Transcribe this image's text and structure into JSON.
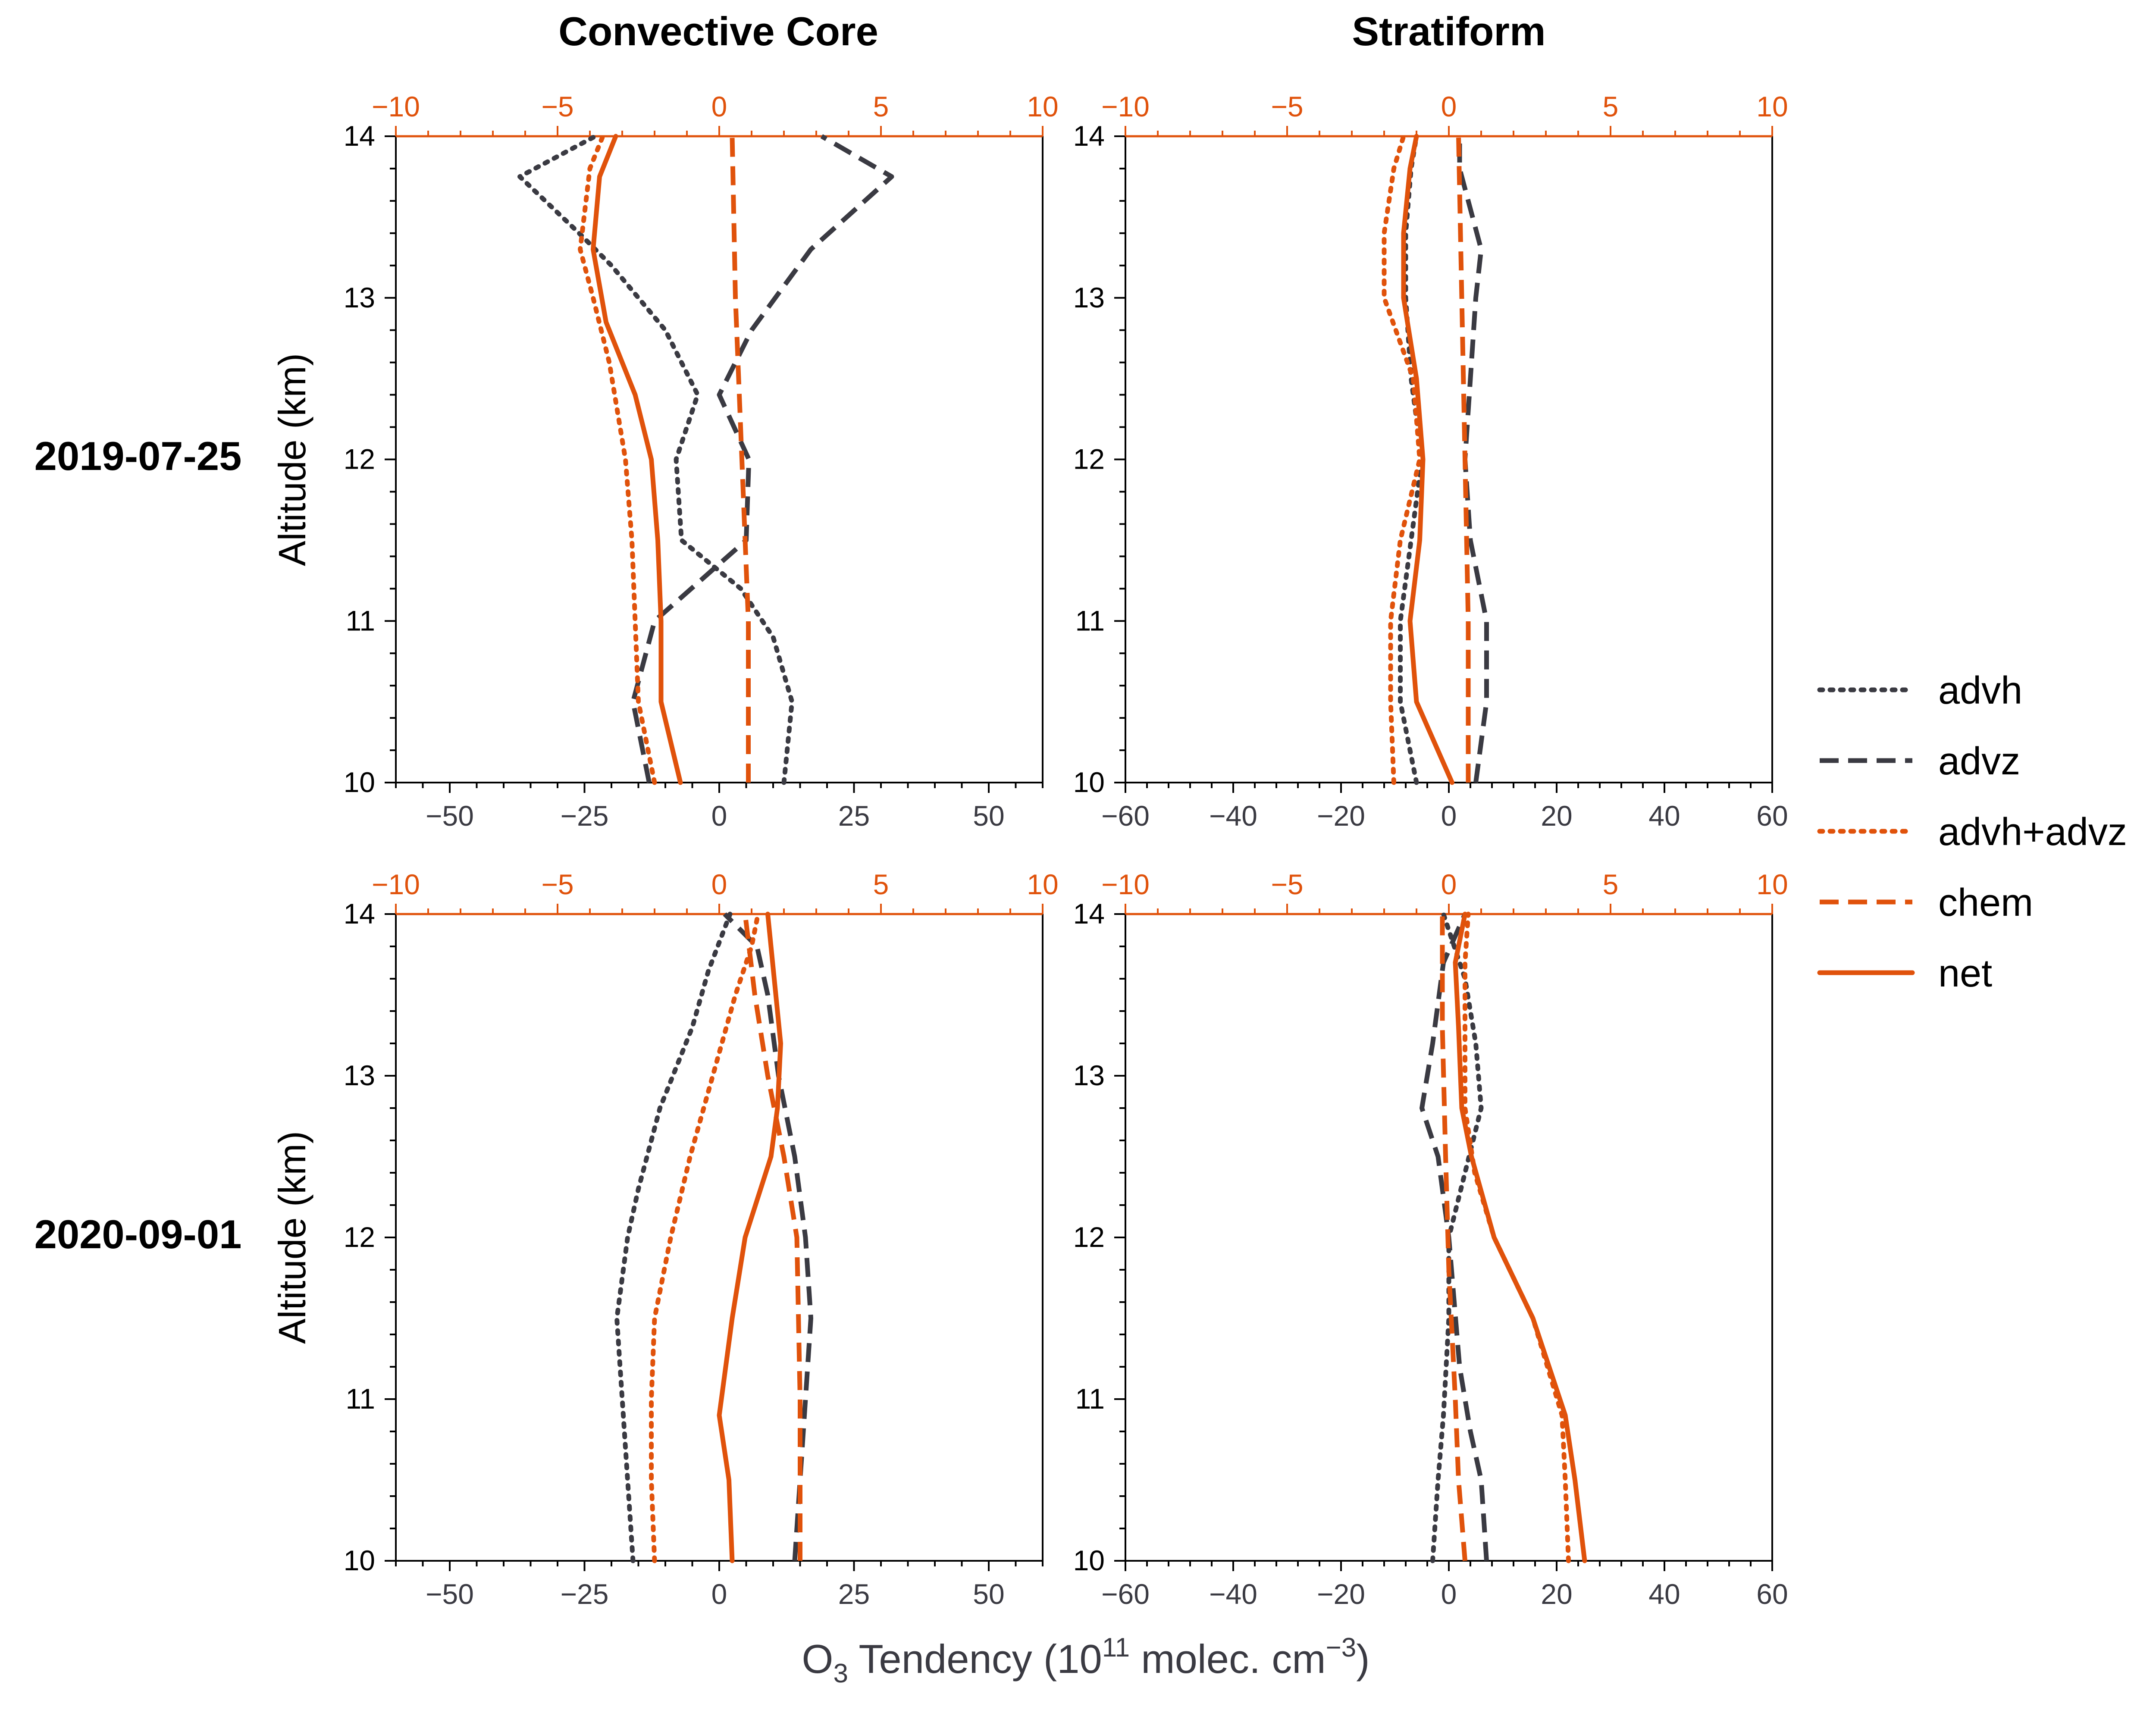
{
  "figure": {
    "column_titles": [
      "Convective Core",
      "Stratiform"
    ],
    "row_labels": [
      "2019-07-25",
      "2020-09-01"
    ],
    "y_label": "Altitude (km)",
    "x_label_prefix": "O",
    "x_label_sub": "3",
    "x_label_mid": " Tendency (10",
    "x_label_sup1": "11",
    "x_label_mid2": " molec. cm",
    "x_label_sup2": "−3",
    "x_label_end": ")",
    "colors": {
      "dark": "#3a3a42",
      "orange": "#e0520b"
    }
  },
  "legend": [
    {
      "label": "advh",
      "color": "#3a3a42",
      "style": "dotted"
    },
    {
      "label": "advz",
      "color": "#3a3a42",
      "style": "dashed"
    },
    {
      "label": "advh+advz",
      "color": "#e0520b",
      "style": "dotted"
    },
    {
      "label": "chem",
      "color": "#e0520b",
      "style": "dashed"
    },
    {
      "label": "net",
      "color": "#e0520b",
      "style": "solid"
    }
  ],
  "chart_data": [
    {
      "type": "line",
      "panel": "Convective Core / 2019-07-25",
      "ylim": [
        10,
        14
      ],
      "yticks": [
        10,
        11,
        12,
        13,
        14
      ],
      "bottom_xlim": [
        -60,
        60
      ],
      "bottom_xticks": [
        -50,
        -25,
        0,
        25,
        50
      ],
      "top_xlim": [
        -10,
        10
      ],
      "top_xticks": [
        -10,
        -5,
        0,
        5,
        10
      ],
      "series": [
        {
          "name": "advh",
          "axis": "bottom",
          "points": [
            [
              12,
              10
            ],
            [
              13.5,
              10.5
            ],
            [
              10,
              10.9
            ],
            [
              4,
              11.2
            ],
            [
              -7,
              11.5
            ],
            [
              -8,
              12
            ],
            [
              -4,
              12.4
            ],
            [
              -10,
              12.8
            ],
            [
              -20,
              13.2
            ],
            [
              -26,
              13.4
            ],
            [
              -37,
              13.75
            ],
            [
              -23,
              14
            ]
          ]
        },
        {
          "name": "advz",
          "axis": "bottom",
          "points": [
            [
              -13,
              10
            ],
            [
              -16,
              10.5
            ],
            [
              -12,
              11
            ],
            [
              5,
              11.5
            ],
            [
              5.5,
              12
            ],
            [
              0,
              12.4
            ],
            [
              6,
              12.8
            ],
            [
              17,
              13.3
            ],
            [
              32,
              13.75
            ],
            [
              19,
              14
            ]
          ]
        },
        {
          "name": "advh+advz",
          "axis": "top",
          "points": [
            [
              -2.0,
              10
            ],
            [
              -2.5,
              10.5
            ],
            [
              -2.6,
              11
            ],
            [
              -2.7,
              11.5
            ],
            [
              -2.9,
              12
            ],
            [
              -3.4,
              12.6
            ],
            [
              -3.9,
              13
            ],
            [
              -4.3,
              13.3
            ],
            [
              -4.0,
              13.8
            ],
            [
              -3.6,
              14
            ]
          ]
        },
        {
          "name": "chem",
          "axis": "top",
          "points": [
            [
              0.9,
              10
            ],
            [
              0.9,
              11
            ],
            [
              0.7,
              12
            ],
            [
              0.5,
              13
            ],
            [
              0.4,
              14
            ]
          ]
        },
        {
          "name": "net",
          "axis": "top",
          "points": [
            [
              -1.2,
              10
            ],
            [
              -1.8,
              10.5
            ],
            [
              -1.8,
              11
            ],
            [
              -1.9,
              11.5
            ],
            [
              -2.1,
              12
            ],
            [
              -2.6,
              12.4
            ],
            [
              -3.5,
              12.85
            ],
            [
              -3.9,
              13.3
            ],
            [
              -3.7,
              13.75
            ],
            [
              -3.2,
              14
            ]
          ]
        }
      ]
    },
    {
      "type": "line",
      "panel": "Stratiform / 2019-07-25",
      "ylim": [
        10,
        14
      ],
      "yticks": [
        10,
        11,
        12,
        13,
        14
      ],
      "bottom_xlim": [
        -60,
        60
      ],
      "bottom_xticks": [
        -60,
        -40,
        -20,
        0,
        20,
        40,
        60
      ],
      "top_xlim": [
        -10,
        10
      ],
      "top_xticks": [
        -10,
        -5,
        0,
        5,
        10
      ],
      "series": [
        {
          "name": "advh",
          "axis": "bottom",
          "points": [
            [
              -6,
              10
            ],
            [
              -9,
              10.5
            ],
            [
              -9,
              11
            ],
            [
              -7,
              11.5
            ],
            [
              -5,
              12
            ],
            [
              -7,
              12.5
            ],
            [
              -8,
              13
            ],
            [
              -8,
              13.4
            ],
            [
              -7,
              13.8
            ],
            [
              -6,
              14
            ]
          ]
        },
        {
          "name": "advz",
          "axis": "bottom",
          "points": [
            [
              5,
              10
            ],
            [
              7,
              10.5
            ],
            [
              7,
              11
            ],
            [
              4,
              11.5
            ],
            [
              3,
              12
            ],
            [
              4,
              12.5
            ],
            [
              5,
              13
            ],
            [
              6,
              13.3
            ],
            [
              2,
              13.8
            ],
            [
              2,
              14
            ]
          ]
        },
        {
          "name": "advh+advz",
          "axis": "top",
          "points": [
            [
              -1.7,
              10
            ],
            [
              -1.8,
              10.5
            ],
            [
              -1.8,
              11
            ],
            [
              -1.5,
              11.5
            ],
            [
              -0.9,
              12
            ],
            [
              -1.1,
              12.5
            ],
            [
              -2.0,
              13
            ],
            [
              -2.0,
              13.4
            ],
            [
              -1.7,
              13.8
            ],
            [
              -1.4,
              14
            ]
          ]
        },
        {
          "name": "chem",
          "axis": "top",
          "points": [
            [
              0.6,
              10
            ],
            [
              0.6,
              11
            ],
            [
              0.5,
              12
            ],
            [
              0.4,
              13
            ],
            [
              0.3,
              14
            ]
          ]
        },
        {
          "name": "net",
          "axis": "top",
          "points": [
            [
              0.1,
              10
            ],
            [
              -1.0,
              10.5
            ],
            [
              -1.2,
              11
            ],
            [
              -0.9,
              11.5
            ],
            [
              -0.8,
              12
            ],
            [
              -1.0,
              12.5
            ],
            [
              -1.4,
              13
            ],
            [
              -1.4,
              13.4
            ],
            [
              -1.2,
              13.8
            ],
            [
              -1.0,
              14
            ]
          ]
        }
      ]
    },
    {
      "type": "line",
      "panel": "Convective Core / 2020-09-01",
      "ylim": [
        10,
        14
      ],
      "yticks": [
        10,
        11,
        12,
        13,
        14
      ],
      "bottom_xlim": [
        -60,
        60
      ],
      "bottom_xticks": [
        -50,
        -25,
        0,
        25,
        50
      ],
      "top_xlim": [
        -10,
        10
      ],
      "top_xticks": [
        -10,
        -5,
        0,
        5,
        10
      ],
      "series": [
        {
          "name": "advh",
          "axis": "bottom",
          "points": [
            [
              -16,
              10
            ],
            [
              -17,
              10.5
            ],
            [
              -18,
              11
            ],
            [
              -19,
              11.5
            ],
            [
              -17,
              12
            ],
            [
              -15,
              12.3
            ],
            [
              -11,
              12.8
            ],
            [
              -5,
              13.3
            ],
            [
              -2,
              13.65
            ],
            [
              2,
              14
            ]
          ]
        },
        {
          "name": "advz",
          "axis": "bottom",
          "points": [
            [
              14,
              10
            ],
            [
              15,
              10.5
            ],
            [
              16,
              11
            ],
            [
              17,
              11.5
            ],
            [
              16,
              12
            ],
            [
              14,
              12.5
            ],
            [
              11,
              13
            ],
            [
              9,
              13.5
            ],
            [
              7,
              13.8
            ],
            [
              1,
              14
            ]
          ]
        },
        {
          "name": "advh+advz",
          "axis": "top",
          "points": [
            [
              -2.0,
              10
            ],
            [
              -2.1,
              10.5
            ],
            [
              -2.1,
              11
            ],
            [
              -2.0,
              11.5
            ],
            [
              -1.5,
              12
            ],
            [
              -0.9,
              12.5
            ],
            [
              -0.2,
              13
            ],
            [
              0.5,
              13.5
            ],
            [
              1.0,
              13.8
            ],
            [
              1.2,
              14
            ]
          ]
        },
        {
          "name": "chem",
          "axis": "top",
          "points": [
            [
              2.5,
              10
            ],
            [
              2.5,
              11
            ],
            [
              2.4,
              12
            ],
            [
              2.0,
              12.5
            ],
            [
              1.5,
              13
            ],
            [
              1.1,
              13.5
            ],
            [
              0.8,
              14
            ]
          ]
        },
        {
          "name": "net",
          "axis": "top",
          "points": [
            [
              0.4,
              10
            ],
            [
              0.3,
              10.5
            ],
            [
              0.0,
              10.9
            ],
            [
              0.4,
              11.5
            ],
            [
              0.8,
              12
            ],
            [
              1.6,
              12.5
            ],
            [
              1.8,
              12.8
            ],
            [
              1.9,
              13.2
            ],
            [
              1.7,
              13.6
            ],
            [
              1.5,
              14
            ]
          ]
        }
      ]
    },
    {
      "type": "line",
      "panel": "Stratiform / 2020-09-01",
      "ylim": [
        10,
        14
      ],
      "yticks": [
        10,
        11,
        12,
        13,
        14
      ],
      "bottom_xlim": [
        -60,
        60
      ],
      "bottom_xticks": [
        -60,
        -40,
        -20,
        0,
        20,
        40,
        60
      ],
      "top_xlim": [
        -10,
        10
      ],
      "top_xticks": [
        -10,
        -5,
        0,
        5,
        10
      ],
      "series": [
        {
          "name": "advh",
          "axis": "bottom",
          "points": [
            [
              -3,
              10
            ],
            [
              -2,
              10.5
            ],
            [
              -1,
              10.9
            ],
            [
              0,
              11.5
            ],
            [
              0,
              12
            ],
            [
              3,
              12.4
            ],
            [
              6,
              12.8
            ],
            [
              5,
              13.2
            ],
            [
              3,
              13.6
            ],
            [
              -1,
              14
            ]
          ]
        },
        {
          "name": "advz",
          "axis": "bottom",
          "points": [
            [
              7,
              10
            ],
            [
              6,
              10.5
            ],
            [
              4,
              10.8
            ],
            [
              2,
              11.2
            ],
            [
              0,
              12
            ],
            [
              -2,
              12.5
            ],
            [
              -5,
              12.8
            ],
            [
              -3,
              13.2
            ],
            [
              -1,
              13.7
            ],
            [
              3,
              14
            ]
          ]
        },
        {
          "name": "advh+advz",
          "axis": "top",
          "points": [
            [
              3.7,
              10
            ],
            [
              3.6,
              10.5
            ],
            [
              3.5,
              10.9
            ],
            [
              2.6,
              11.5
            ],
            [
              1.4,
              12
            ],
            [
              0.8,
              12.4
            ],
            [
              0.5,
              12.8
            ],
            [
              0.5,
              13.3
            ],
            [
              0.5,
              13.7
            ],
            [
              0.6,
              14
            ]
          ]
        },
        {
          "name": "chem",
          "axis": "top",
          "points": [
            [
              0.5,
              10
            ],
            [
              0.3,
              10.5
            ],
            [
              0.2,
              11
            ],
            [
              0.0,
              11.8
            ],
            [
              -0.1,
              12.5
            ],
            [
              -0.2,
              13.3
            ],
            [
              -0.2,
              14
            ]
          ]
        },
        {
          "name": "net",
          "axis": "top",
          "points": [
            [
              4.2,
              10
            ],
            [
              3.9,
              10.5
            ],
            [
              3.6,
              10.9
            ],
            [
              2.6,
              11.5
            ],
            [
              1.4,
              12
            ],
            [
              0.7,
              12.5
            ],
            [
              0.4,
              12.8
            ],
            [
              0.3,
              13.3
            ],
            [
              0.2,
              13.7
            ],
            [
              0.5,
              14
            ]
          ]
        }
      ]
    }
  ]
}
